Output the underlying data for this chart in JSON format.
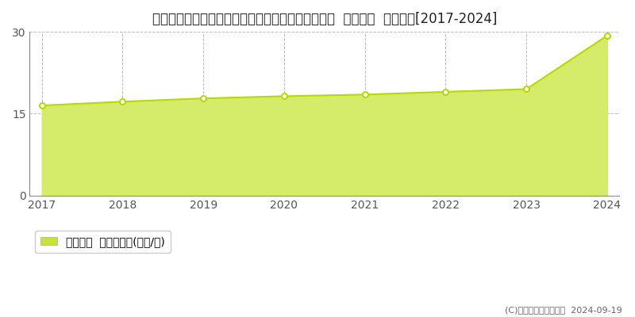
{
  "title": "宮城県仙台市青葉区双葉ケ丘１丁目１１８番１０４  基準地価  地価推移[2017-2024]",
  "years": [
    2017,
    2018,
    2019,
    2020,
    2021,
    2022,
    2023,
    2024
  ],
  "values": [
    16.5,
    17.2,
    17.8,
    18.2,
    18.5,
    19.0,
    19.5,
    29.3
  ],
  "ylim": [
    0,
    30
  ],
  "yticks": [
    0,
    15,
    30
  ],
  "line_color": "#b8d800",
  "fill_color": "#d4ec6a",
  "fill_alpha": 1.0,
  "marker_facecolor": "#ffffff",
  "marker_edgecolor": "#b8d800",
  "grid_color": "#bbbbbb",
  "bg_color": "#ffffff",
  "plot_bg_color": "#ffffff",
  "legend_label": "基準地価  平均坪単価(万円/坪)",
  "legend_color": "#c8e040",
  "copyright_text": "(C)土地価格ドットコム  2024-09-19",
  "title_fontsize": 12,
  "axis_fontsize": 10,
  "legend_fontsize": 10,
  "tick_color": "#555555"
}
